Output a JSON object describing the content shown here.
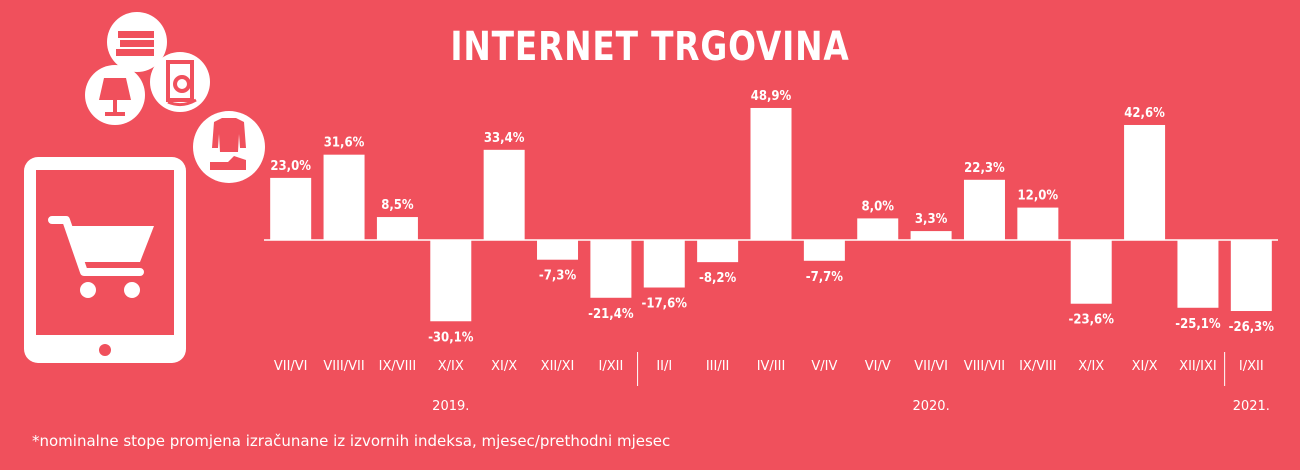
{
  "title": "INTERNET  TRGOVINA",
  "footnote": "*nominalne stope promjena izračunane iz izvornih indeksa, mjesec/prethodni mjesec",
  "icons": [
    "books-icon",
    "lamp-icon",
    "washing-machine-icon",
    "clothes-icon",
    "tablet-icon",
    "shopping-cart-icon"
  ],
  "colors": {
    "background": "#f0505c",
    "bars": "#ffffff",
    "text": "#ffffff"
  },
  "chart_data": {
    "type": "bar",
    "categories": [
      "VII/VI",
      "VIII/VII",
      "IX/VIII",
      "X/IX",
      "XI/X",
      "XII/XI",
      "I/XII",
      "II/I",
      "III/II",
      "IV/III",
      "V/IV",
      "VI/V",
      "VII/VI",
      "VIII/VII",
      "IX/VIII",
      "X/IX",
      "XI/X",
      "XII/IXI",
      "I/XII"
    ],
    "values": [
      23.0,
      31.6,
      8.5,
      -30.1,
      33.4,
      -7.3,
      -21.4,
      -17.6,
      -8.2,
      48.9,
      -7.7,
      8.0,
      3.3,
      22.3,
      12.0,
      -23.6,
      42.6,
      -25.1,
      -26.3
    ],
    "data_labels": [
      "23,0%",
      "31,6%",
      "8,5%",
      "-30,1%",
      "33,4%",
      "-7,3%",
      "-21,4%",
      "-17,6%",
      "-8,2%",
      "48,9%",
      "-7,7%",
      "8,0%",
      "3,3%",
      "22,3%",
      "12,0%",
      "-23,6%",
      "42,6%",
      "-25,1%",
      "-26,3%"
    ],
    "years": [
      {
        "label": "2019.",
        "from": 0,
        "to": 6
      },
      {
        "label": "2020.",
        "from": 7,
        "to": 17
      },
      {
        "label": "2021.",
        "from": 18,
        "to": 18
      }
    ],
    "ylim": [
      -30.1,
      48.9
    ],
    "grid": false,
    "legend": "none"
  }
}
